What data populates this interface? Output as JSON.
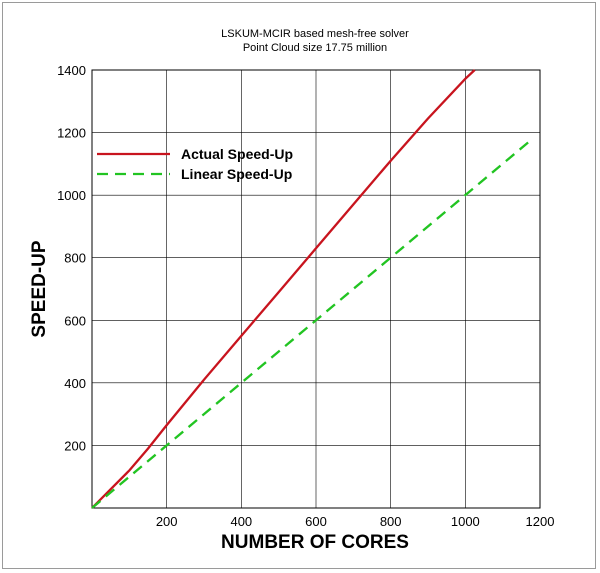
{
  "chart_data": {
    "type": "line",
    "title": "LSKUM-MCIR based mesh-free solver",
    "subtitle": "Point Cloud size 17.75 million",
    "xlabel": "NUMBER OF CORES",
    "ylabel": "SPEED-UP",
    "xlim": [
      0,
      1200
    ],
    "ylim": [
      0,
      1400
    ],
    "xticks": [
      200,
      400,
      600,
      800,
      1000,
      1200
    ],
    "yticks": [
      200,
      400,
      600,
      800,
      1000,
      1200,
      1400
    ],
    "grid": true,
    "legend_position": "top-left",
    "series": [
      {
        "name": "Actual Speed-Up",
        "color": "#c8141e",
        "style": "solid",
        "x": [
          0,
          50,
          100,
          150,
          200,
          300,
          400,
          500,
          600,
          700,
          800,
          900,
          1000,
          1025
        ],
        "y": [
          0,
          60,
          120,
          190,
          265,
          410,
          550,
          690,
          830,
          970,
          1110,
          1245,
          1372,
          1400
        ]
      },
      {
        "name": "Linear Speed-Up",
        "color": "#22c422",
        "style": "dashed",
        "x": [
          0,
          1180
        ],
        "y": [
          0,
          1180
        ]
      }
    ]
  }
}
